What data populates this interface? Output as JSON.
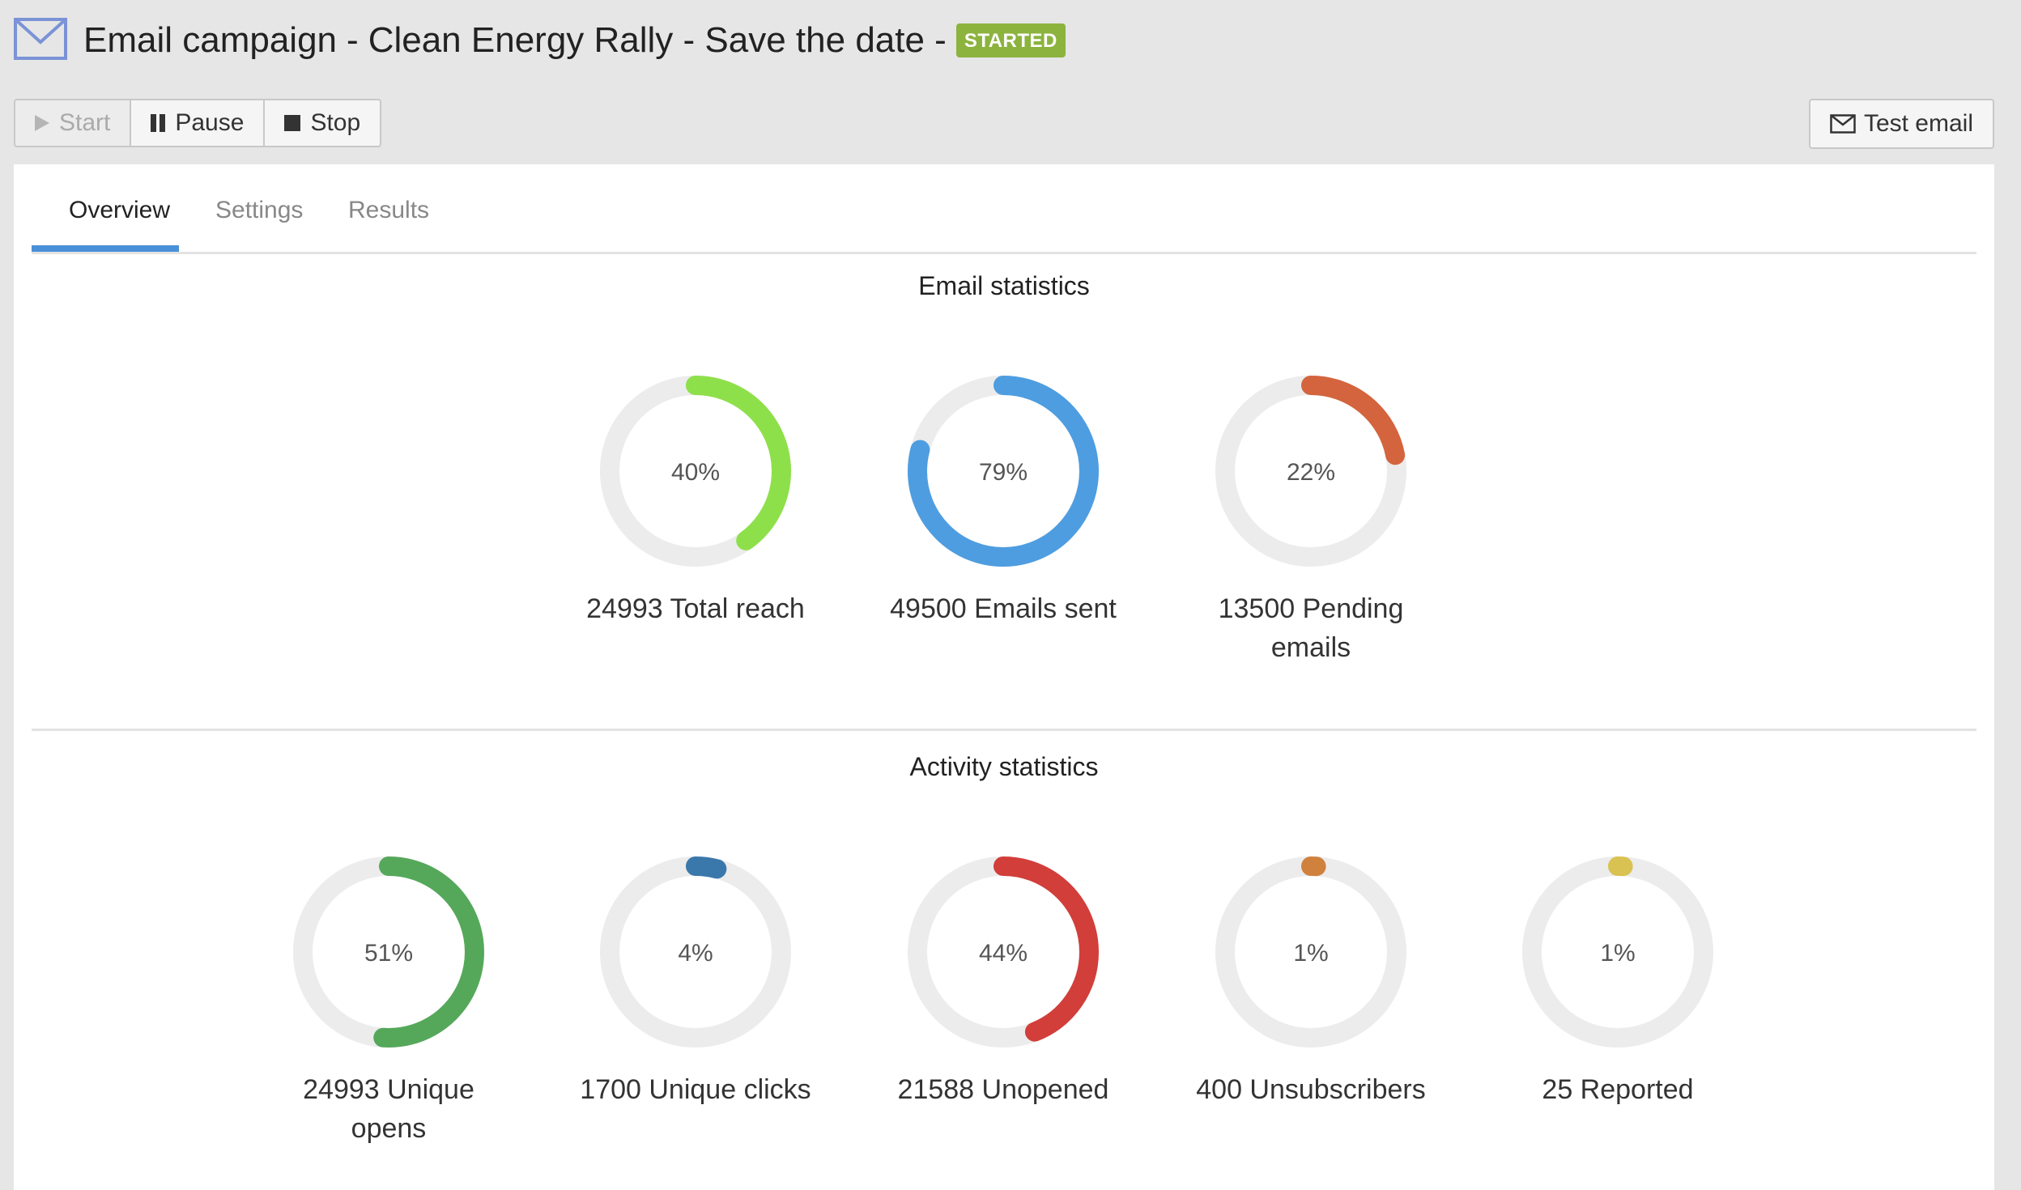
{
  "header": {
    "campaign_type": "Email campaign",
    "separator": "-",
    "campaign_name": "Clean Energy Rally - Save the date -",
    "status_badge": "STARTED",
    "icon": "envelope-icon"
  },
  "toolbar": {
    "start_label": "Start",
    "pause_label": "Pause",
    "stop_label": "Stop",
    "test_email_label": "Test email"
  },
  "tabs": [
    {
      "label": "Overview",
      "active": true
    },
    {
      "label": "Settings",
      "active": false
    },
    {
      "label": "Results",
      "active": false
    }
  ],
  "email_statistics": {
    "title": "Email statistics",
    "items": [
      {
        "percent": 40,
        "percent_label": "40%",
        "label": "24993 Total reach",
        "color": "#8ee04a"
      },
      {
        "percent": 79,
        "percent_label": "79%",
        "label": "49500 Emails sent",
        "color": "#4e9de0"
      },
      {
        "percent": 22,
        "percent_label": "22%",
        "label": "13500 Pending emails",
        "color": "#d4643d"
      }
    ]
  },
  "activity_statistics": {
    "title": "Activity statistics",
    "items": [
      {
        "percent": 51,
        "percent_label": "51%",
        "label": "24993 Unique opens",
        "color": "#55a85a"
      },
      {
        "percent": 4,
        "percent_label": "4%",
        "label": "1700 Unique clicks",
        "color": "#3a78ab"
      },
      {
        "percent": 44,
        "percent_label": "44%",
        "label": "21588 Unopened",
        "color": "#d23e3a"
      },
      {
        "percent": 1,
        "percent_label": "1%",
        "label": "400 Unsubscribers",
        "color": "#d0813e"
      },
      {
        "percent": 1,
        "percent_label": "1%",
        "label": "25 Reported",
        "color": "#d9c252"
      }
    ]
  }
}
